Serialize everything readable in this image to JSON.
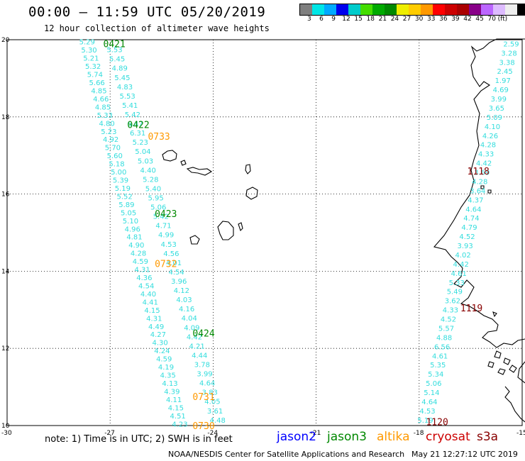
{
  "title": "00:00 – 11:59 UTC 05/20/2019",
  "subtitle": "12 hour collection of altimeter wave heights",
  "colorbar": {
    "colors": [
      "#7f7f7f",
      "#00e6e6",
      "#00aaff",
      "#0000ee",
      "#00cccc",
      "#44dd00",
      "#00aa00",
      "#008800",
      "#eeee00",
      "#ffcc00",
      "#ff9900",
      "#ff0000",
      "#cc0000",
      "#aa0000",
      "#880088",
      "#bb66ff",
      "#ddbbff",
      "#eeeeee",
      "#000000"
    ],
    "labels": [
      "3",
      "6",
      "9",
      "12",
      "15",
      "18",
      "21",
      "24",
      "27",
      "30",
      "33",
      "36",
      "39",
      "42",
      "45",
      "70",
      "(ft)"
    ]
  },
  "lat_labels": [
    "20",
    "18",
    "16",
    "14",
    "12",
    "10"
  ],
  "lon_labels": [
    "-30",
    "-27",
    "-24",
    "-21",
    "-18",
    "-15"
  ],
  "colors": {
    "jason2": "#0000ff",
    "jason3": "#008800",
    "altika": "#ff9900",
    "cryosat": "#cc0000",
    "s3a": "#880000",
    "swh_cyan": "#33dddd"
  },
  "chart_data": {
    "type": "map",
    "lon_range": [
      -30,
      -15
    ],
    "lat_range": [
      10,
      20
    ],
    "track_west_values": [
      "5.29",
      "5.30",
      "5.21",
      "5.32",
      "5.74",
      "5.66",
      "4.85",
      "4.66",
      "4.85",
      "5.33",
      "4.80",
      "5.23",
      "4.92",
      "5.70",
      "5.60",
      "5.18",
      "5.00",
      "5.39",
      "5.19",
      "5.52",
      "5.89",
      "5.05",
      "5.10",
      "4.96",
      "4.81",
      "4.90",
      "4.28",
      "4.59",
      "4.31",
      "4.36",
      "4.54",
      "4.40",
      "4.41",
      "4.15",
      "4.31",
      "4.49",
      "4.27",
      "4.30",
      "4.24",
      "4.59",
      "4.19",
      "4.35",
      "4.13",
      "4.39",
      "4.11",
      "4.15",
      "4.51",
      "4.23"
    ],
    "track_east_values": [
      "5.53",
      "5.45",
      "4.89",
      "5.45",
      "4.83",
      "5.53",
      "5.41",
      "5.42",
      "6.47",
      "6.31",
      "5.23",
      "5.04",
      "5.03",
      "4.40",
      "5.28",
      "5.40",
      "5.95",
      "5.06",
      "5.42",
      "4.71",
      "4.99",
      "4.53",
      "4.56",
      "4.01",
      "4.54",
      "3.96",
      "4.12",
      "4.03",
      "4.16",
      "4.04",
      "4.09",
      "4.42",
      "4.21",
      "4.44",
      "3.78",
      "3.99",
      "4.64",
      "3.83",
      "4.05",
      "3.61",
      "4.48"
    ],
    "track_coast_values": [
      "2.59",
      "3.28",
      "3.38",
      "2.45",
      "1.97",
      "4.69",
      "3.99",
      "3.65",
      "5.09",
      "4.10",
      "4.26",
      "4.28",
      "4.33",
      "4.42",
      "3.69",
      "4.28",
      "3.64",
      "4.37",
      "4.64",
      "4.74",
      "4.79",
      "4.52",
      "3.93",
      "4.02",
      "4.42",
      "4.61",
      "5.33",
      "5.49",
      "3.62",
      "4.33",
      "4.52",
      "5.57",
      "4.88",
      "6.56",
      "4.61",
      "5.35",
      "5.34",
      "5.06",
      "5.14",
      "4.64",
      "4.53",
      "5.19"
    ],
    "pass_labels": [
      {
        "text": "0421",
        "sat": "jason3"
      },
      {
        "text": "0422",
        "sat": "jason3"
      },
      {
        "text": "0733",
        "sat": "altika"
      },
      {
        "text": "0423",
        "sat": "jason3"
      },
      {
        "text": "0732",
        "sat": "altika"
      },
      {
        "text": "0424",
        "sat": "jason3"
      },
      {
        "text": "0731",
        "sat": "altika"
      },
      {
        "text": "0730",
        "sat": "altika"
      },
      {
        "text": "1118",
        "sat": "s3a"
      },
      {
        "text": "1119",
        "sat": "s3a"
      },
      {
        "text": "1120",
        "sat": "s3a"
      }
    ]
  },
  "note": "note: 1) Time is in UTC; 2) SWH is in feet",
  "satellites": [
    "jason2",
    "jason3",
    "altika",
    "cryosat",
    "s3a"
  ],
  "footer_left": "NOAA/NESDIS Center for Satellite Applications and Research",
  "footer_right": "May 21 12:27:12 UTC 2019"
}
